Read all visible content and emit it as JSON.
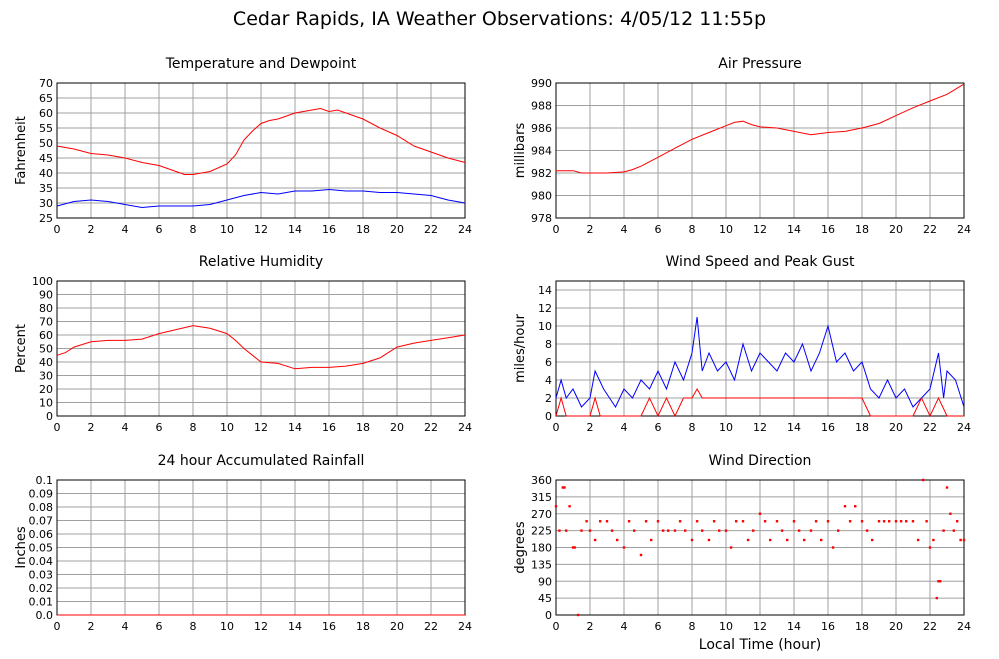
{
  "page": {
    "title": "Cedar Rapids, IA Weather Observations: 4/05/12 11:55p",
    "xlabel_shared": "Local Time (hour)"
  },
  "colors": {
    "primary": "#ff0000",
    "secondary": "#0000ff",
    "grid": "#a0a0a0"
  },
  "chart_data": [
    {
      "id": "temp",
      "type": "line",
      "title": "Temperature and Dewpoint",
      "xlabel": "",
      "ylabel": "Fahrenheit",
      "xlim": [
        0,
        24
      ],
      "ylim": [
        25,
        70
      ],
      "xticks": [
        0,
        2,
        4,
        6,
        8,
        10,
        12,
        14,
        16,
        18,
        20,
        22,
        24
      ],
      "yticks": [
        25,
        30,
        35,
        40,
        45,
        50,
        55,
        60,
        65,
        70
      ],
      "series": [
        {
          "color": "#ff0000",
          "x": [
            0,
            1,
            2,
            3,
            4,
            5,
            6,
            7,
            7.5,
            8,
            9,
            10,
            10.5,
            11,
            11.5,
            12,
            12.5,
            13,
            14,
            15,
            15.5,
            16,
            16.5,
            17,
            18,
            19,
            20,
            21,
            22,
            23,
            24
          ],
          "y": [
            49,
            48,
            46.5,
            46,
            45,
            43.5,
            42.5,
            40.5,
            39.5,
            39.5,
            40.5,
            43,
            46,
            51,
            54,
            56.5,
            57.5,
            58,
            60,
            61,
            61.5,
            60.5,
            61,
            60,
            58,
            55,
            52.5,
            49,
            47,
            45,
            43.5
          ]
        },
        {
          "color": "#0000ff",
          "x": [
            0,
            1,
            2,
            3,
            4,
            5,
            6,
            7,
            8,
            9,
            10,
            11,
            12,
            13,
            14,
            15,
            16,
            17,
            18,
            19,
            20,
            21,
            22,
            23,
            24
          ],
          "y": [
            29,
            30.5,
            31,
            30.5,
            29.5,
            28.5,
            29,
            29,
            29,
            29.5,
            31,
            32.5,
            33.5,
            33,
            34,
            34,
            34.5,
            34,
            34,
            33.5,
            33.5,
            33,
            32.5,
            31,
            30
          ]
        }
      ]
    },
    {
      "id": "press",
      "type": "line",
      "title": "Air Pressure",
      "xlabel": "",
      "ylabel": "millibars",
      "xlim": [
        0,
        24
      ],
      "ylim": [
        978,
        990
      ],
      "xticks": [
        0,
        2,
        4,
        6,
        8,
        10,
        12,
        14,
        16,
        18,
        20,
        22,
        24
      ],
      "yticks": [
        978,
        980,
        982,
        984,
        986,
        988,
        990
      ],
      "series": [
        {
          "color": "#ff0000",
          "x": [
            0,
            1,
            1.5,
            2,
            3,
            4,
            4.5,
            5,
            6,
            7,
            8,
            9,
            10,
            10.5,
            11,
            11.5,
            12,
            13,
            14,
            15,
            16,
            17,
            18,
            19,
            20,
            21,
            22,
            23,
            24
          ],
          "y": [
            982.2,
            982.2,
            982,
            982,
            982,
            982.1,
            982.3,
            982.6,
            983.4,
            984.2,
            985,
            985.6,
            986.2,
            986.5,
            986.6,
            986.3,
            986.1,
            986,
            985.7,
            985.4,
            985.6,
            985.7,
            986,
            986.4,
            987.1,
            987.8,
            988.4,
            989,
            989.9
          ]
        }
      ]
    },
    {
      "id": "rh",
      "type": "line",
      "title": "Relative Humidity",
      "xlabel": "",
      "ylabel": "Percent",
      "xlim": [
        0,
        24
      ],
      "ylim": [
        0,
        100
      ],
      "xticks": [
        0,
        2,
        4,
        6,
        8,
        10,
        12,
        14,
        16,
        18,
        20,
        22,
        24
      ],
      "yticks": [
        0,
        10,
        20,
        30,
        40,
        50,
        60,
        70,
        80,
        90,
        100
      ],
      "series": [
        {
          "color": "#ff0000",
          "x": [
            0,
            0.5,
            1,
            2,
            3,
            4,
            5,
            6,
            7,
            8,
            9,
            10,
            10.5,
            11,
            11.5,
            12,
            13,
            14,
            15,
            16,
            17,
            18,
            19,
            20,
            21,
            22,
            23,
            24
          ],
          "y": [
            45,
            47,
            51,
            55,
            56,
            56,
            57,
            61,
            64,
            67,
            65,
            61,
            56,
            50,
            45,
            40,
            39,
            35,
            36,
            36,
            37,
            39,
            43,
            51,
            54,
            56,
            58,
            60
          ]
        }
      ]
    },
    {
      "id": "wind",
      "type": "line",
      "title": "Wind Speed and Peak Gust",
      "xlabel": "",
      "ylabel": "miles/hour",
      "xlim": [
        0,
        24
      ],
      "ylim": [
        0,
        15
      ],
      "xticks": [
        0,
        2,
        4,
        6,
        8,
        10,
        12,
        14,
        16,
        18,
        20,
        22,
        24
      ],
      "yticks": [
        0,
        2,
        4,
        6,
        8,
        10,
        12,
        14
      ],
      "series": [
        {
          "color": "#0000ff",
          "x": [
            0,
            0.3,
            0.6,
            1,
            1.5,
            2,
            2.3,
            2.8,
            3.5,
            4,
            4.5,
            5,
            5.5,
            6,
            6.5,
            7,
            7.5,
            8,
            8.3,
            8.6,
            9,
            9.5,
            10,
            10.5,
            11,
            11.5,
            12,
            12.5,
            13,
            13.5,
            14,
            14.5,
            15,
            15.5,
            16,
            16.5,
            17,
            17.5,
            18,
            18.5,
            19,
            19.5,
            20,
            20.5,
            21,
            21.5,
            22,
            22.5,
            22.8,
            23,
            23.5,
            24
          ],
          "y": [
            2,
            4,
            2,
            3,
            1,
            2,
            5,
            3,
            1,
            3,
            2,
            4,
            3,
            5,
            3,
            6,
            4,
            7,
            11,
            5,
            7,
            5,
            6,
            4,
            8,
            5,
            7,
            6,
            5,
            7,
            6,
            8,
            5,
            7,
            10,
            6,
            7,
            5,
            6,
            3,
            2,
            4,
            2,
            3,
            1,
            2,
            3,
            7,
            2,
            5,
            4,
            1
          ]
        },
        {
          "color": "#ff0000",
          "x": [
            0,
            0.3,
            0.6,
            1,
            2,
            2.3,
            2.6,
            3,
            4,
            5,
            5.5,
            6,
            6.5,
            7,
            7.5,
            8,
            8.3,
            8.6,
            9,
            10,
            11,
            12,
            13,
            14,
            15,
            16,
            17,
            18,
            18.5,
            19,
            20,
            21,
            21.5,
            22,
            22.5,
            23,
            24
          ],
          "y": [
            0,
            2,
            0,
            0,
            0,
            2,
            0,
            0,
            0,
            0,
            2,
            0,
            2,
            0,
            2,
            2,
            3,
            2,
            2,
            2,
            2,
            2,
            2,
            2,
            2,
            2,
            2,
            2,
            0,
            0,
            0,
            0,
            2,
            0,
            2,
            0,
            0
          ]
        }
      ]
    },
    {
      "id": "rain",
      "type": "line",
      "title": "24 hour Accumulated Rainfall",
      "xlabel": "",
      "ylabel": "Inches",
      "xlim": [
        0,
        24
      ],
      "ylim": [
        0,
        0.1
      ],
      "xticks": [
        0,
        2,
        4,
        6,
        8,
        10,
        12,
        14,
        16,
        18,
        20,
        22,
        24
      ],
      "yticks": [
        0,
        0.01,
        0.02,
        0.03,
        0.04,
        0.05,
        0.06,
        0.07,
        0.08,
        0.09,
        0.1
      ],
      "ytick_labels": [
        "0.0",
        "0.01",
        "0.02",
        "0.03",
        "0.04",
        "0.05",
        "0.06",
        "0.07",
        "0.08",
        "0.09",
        "0.1"
      ],
      "series": [
        {
          "color": "#ff0000",
          "x": [
            0,
            24
          ],
          "y": [
            0,
            0
          ]
        }
      ]
    },
    {
      "id": "dir",
      "type": "scatter",
      "title": "Wind Direction",
      "xlabel": "Local Time (hour)",
      "ylabel": "degrees",
      "xlim": [
        0,
        24
      ],
      "ylim": [
        0,
        360
      ],
      "xticks": [
        0,
        2,
        4,
        6,
        8,
        10,
        12,
        14,
        16,
        18,
        20,
        22,
        24
      ],
      "yticks": [
        0,
        45,
        90,
        135,
        180,
        225,
        270,
        315,
        360
      ],
      "series": [
        {
          "color": "#ff0000",
          "x": [
            0,
            0.2,
            0.4,
            0.5,
            0.6,
            0.8,
            1,
            1.1,
            1.3,
            1.5,
            1.8,
            2,
            2.3,
            2.6,
            3,
            3.3,
            3.6,
            4,
            4.3,
            4.6,
            5,
            5.3,
            5.6,
            6,
            6.3,
            6.6,
            7,
            7.3,
            7.6,
            8,
            8.3,
            8.6,
            9,
            9.3,
            9.6,
            10,
            10.3,
            10.6,
            11,
            11.3,
            11.6,
            12,
            12.3,
            12.6,
            13,
            13.3,
            13.6,
            14,
            14.3,
            14.6,
            15,
            15.3,
            15.6,
            16,
            16.3,
            16.6,
            17,
            17.3,
            17.6,
            18,
            18.3,
            18.6,
            19,
            19.3,
            19.6,
            20,
            20.3,
            20.6,
            21,
            21.3,
            21.6,
            21.8,
            22,
            22.2,
            22.4,
            22.5,
            22.6,
            22.8,
            23,
            23.2,
            23.4,
            23.6,
            23.8,
            24
          ],
          "y": [
            290,
            225,
            340,
            340,
            225,
            290,
            180,
            180,
            0,
            225,
            250,
            225,
            200,
            250,
            250,
            225,
            200,
            180,
            250,
            225,
            160,
            250,
            200,
            250,
            225,
            225,
            225,
            250,
            225,
            200,
            250,
            225,
            200,
            250,
            225,
            225,
            180,
            250,
            250,
            200,
            225,
            270,
            250,
            200,
            250,
            225,
            200,
            250,
            225,
            200,
            225,
            250,
            200,
            250,
            180,
            225,
            290,
            250,
            290,
            250,
            225,
            200,
            250,
            250,
            250,
            250,
            250,
            250,
            250,
            200,
            360,
            250,
            180,
            200,
            45,
            90,
            90,
            225,
            340,
            270,
            225,
            250,
            200,
            200
          ]
        }
      ]
    }
  ]
}
